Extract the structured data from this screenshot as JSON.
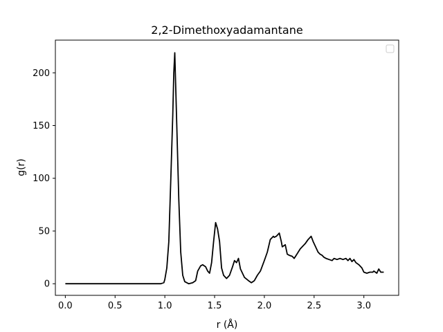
{
  "chart_data": {
    "type": "line",
    "title": "2,2-Dimethoxyadamantane",
    "xlabel": "r (Å)",
    "ylabel": "g(r)",
    "xlim": [
      -0.1,
      3.35
    ],
    "ylim": [
      -11,
      231
    ],
    "xticks": [
      {
        "value": 0.0,
        "label": "0.0"
      },
      {
        "value": 0.5,
        "label": "0.5"
      },
      {
        "value": 1.0,
        "label": "1.0"
      },
      {
        "value": 1.5,
        "label": "1.5"
      },
      {
        "value": 2.0,
        "label": "2.0"
      },
      {
        "value": 2.5,
        "label": "2.5"
      },
      {
        "value": 3.0,
        "label": "3.0"
      }
    ],
    "yticks": [
      {
        "value": 0,
        "label": "0"
      },
      {
        "value": 50,
        "label": "50"
      },
      {
        "value": 100,
        "label": "100"
      },
      {
        "value": 150,
        "label": "150"
      },
      {
        "value": 200,
        "label": "200"
      }
    ],
    "grid": false,
    "legend": {
      "position": "top-right",
      "entries": []
    },
    "series": [
      {
        "color": "#000000",
        "x": [
          0.0,
          0.1,
          0.2,
          0.3,
          0.4,
          0.5,
          0.6,
          0.7,
          0.8,
          0.9,
          0.96,
          0.99,
          1.0,
          1.02,
          1.04,
          1.06,
          1.08,
          1.09,
          1.1,
          1.12,
          1.14,
          1.16,
          1.18,
          1.2,
          1.24,
          1.28,
          1.31,
          1.33,
          1.36,
          1.38,
          1.41,
          1.43,
          1.45,
          1.47,
          1.49,
          1.51,
          1.53,
          1.55,
          1.57,
          1.59,
          1.62,
          1.65,
          1.68,
          1.7,
          1.72,
          1.74,
          1.76,
          1.78,
          1.8,
          1.84,
          1.87,
          1.9,
          1.93,
          1.96,
          2.0,
          2.03,
          2.06,
          2.09,
          2.1,
          2.12,
          2.15,
          2.17,
          2.18,
          2.21,
          2.23,
          2.25,
          2.28,
          2.3,
          2.32,
          2.34,
          2.36,
          2.38,
          2.41,
          2.44,
          2.47,
          2.49,
          2.5,
          2.51,
          2.54,
          2.56,
          2.58,
          2.6,
          2.62,
          2.65,
          2.68,
          2.7,
          2.73,
          2.76,
          2.79,
          2.82,
          2.84,
          2.86,
          2.88,
          2.9,
          2.92,
          2.95,
          2.98,
          3.0,
          3.03,
          3.06,
          3.09,
          3.1,
          3.13,
          3.15,
          3.17,
          3.2
        ],
        "y": [
          0,
          0,
          0,
          0,
          0,
          0,
          0,
          0,
          0,
          0,
          0,
          1,
          4,
          15,
          40,
          100,
          160,
          200,
          219,
          150,
          80,
          30,
          8,
          2,
          0,
          1,
          3,
          12,
          17,
          18,
          16,
          12,
          10,
          20,
          40,
          58,
          52,
          40,
          15,
          8,
          5,
          8,
          16,
          22,
          20,
          24,
          14,
          10,
          6,
          3,
          1,
          3,
          8,
          12,
          22,
          30,
          42,
          45,
          44,
          45,
          48,
          40,
          35,
          37,
          28,
          27,
          26,
          24,
          27,
          30,
          33,
          35,
          38,
          42,
          45,
          40,
          38,
          36,
          30,
          28,
          27,
          25,
          24,
          23,
          22,
          24,
          23,
          24,
          23,
          24,
          22,
          24,
          21,
          23,
          20,
          18,
          15,
          11,
          10,
          11,
          11,
          12,
          10,
          14,
          11,
          11
        ]
      }
    ]
  }
}
